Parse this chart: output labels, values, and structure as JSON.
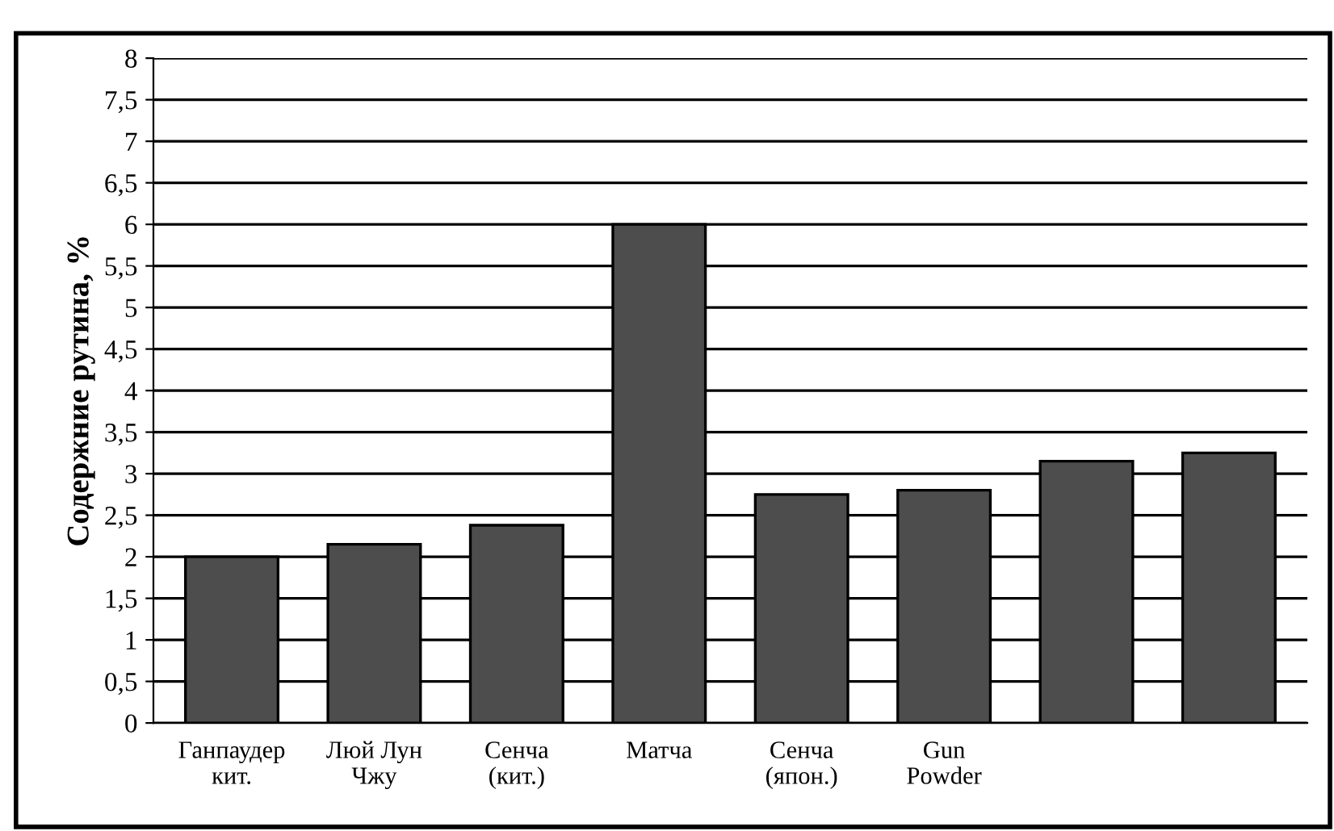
{
  "chart_data": {
    "type": "bar",
    "ylabel": "Содержние рутина, %",
    "categories": [
      "Ганпаудер\nкит.",
      "Люй Лун\nЧжу",
      "Сенча\n(кит.)",
      "Матча",
      "Сенча\n(япон.)",
      "Gun\nPowder",
      null,
      null
    ],
    "values": [
      2.0,
      2.15,
      2.38,
      6.0,
      2.75,
      2.8,
      3.15,
      3.25
    ],
    "color": "#4d4d4d",
    "ylim": [
      0,
      8
    ],
    "yticks": [
      0,
      {
        "value": 0.5,
        "label": "0,5"
      },
      1,
      {
        "value": 1.5,
        "label": "1,5"
      },
      2,
      {
        "value": 2.5,
        "label": "2,5"
      },
      3,
      {
        "value": 3.5,
        "label": "3,5"
      },
      4,
      {
        "value": 4.5,
        "label": "4,5"
      },
      5,
      {
        "value": 5.5,
        "label": "5,5"
      },
      6,
      {
        "value": 6.5,
        "label": "6,5"
      },
      7,
      {
        "value": 7.5,
        "label": "7,5"
      },
      8
    ],
    "grid": "y"
  }
}
